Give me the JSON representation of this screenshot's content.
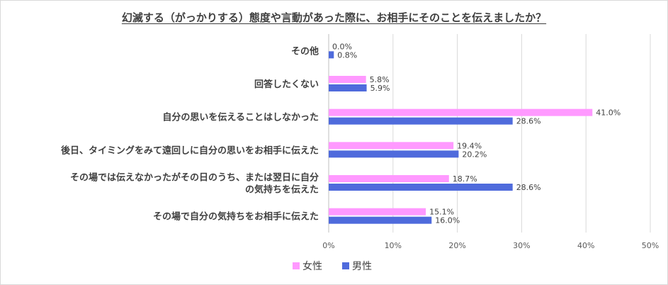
{
  "chart_data": {
    "type": "bar",
    "orientation": "horizontal",
    "title": "幻滅する（がっかりする）態度や言動があった際に、お相手にそのことを伝えましたか？",
    "categories": [
      [
        "その他"
      ],
      [
        "回答したくない"
      ],
      [
        "自分の思いを伝えることはしなかった"
      ],
      [
        "後日、タイミングをみて遠回しに自分の思いをお相手に伝えた"
      ],
      [
        "その場では伝えなかったがその日のうち、または翌日に自分",
        "の気持ちを伝えた"
      ],
      [
        "その場で自分の気持ちをお相手に伝えた"
      ]
    ],
    "series": [
      {
        "name": "女性",
        "color": "#ff99ff",
        "values": [
          0.0,
          5.8,
          41.0,
          19.4,
          18.7,
          15.1
        ],
        "labels": [
          "0.0%",
          "5.8%",
          "41.0%",
          "19.4%",
          "18.7%",
          "15.1%"
        ]
      },
      {
        "name": "男性",
        "color": "#4f6bdc",
        "values": [
          0.8,
          5.9,
          28.6,
          20.2,
          28.6,
          16.0
        ],
        "labels": [
          "0.8%",
          "5.9%",
          "28.6%",
          "20.2%",
          "28.6%",
          "16.0%"
        ]
      }
    ],
    "xlim": [
      0,
      50
    ],
    "ticks": [
      0,
      10,
      20,
      30,
      40,
      50
    ],
    "tick_labels": [
      "0%",
      "10%",
      "20%",
      "30%",
      "40%",
      "50%"
    ],
    "grid": true,
    "legend": "bottom"
  }
}
